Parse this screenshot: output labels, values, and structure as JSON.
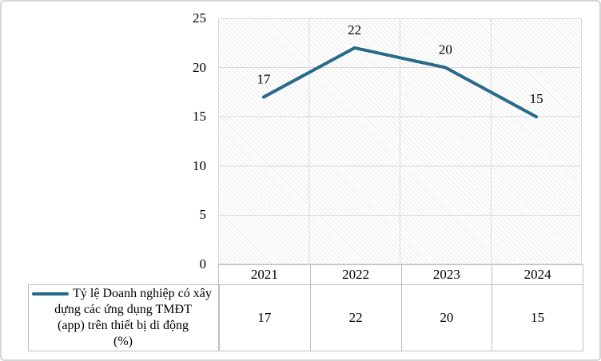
{
  "chart": {
    "y_ticks": [
      "25",
      "20",
      "15",
      "10",
      "5",
      "0"
    ],
    "line_color": "#286a89",
    "grid_color": "#d9d9d9",
    "hatch_color": "#eaeaea",
    "table_border_color": "#bfbfbf"
  },
  "chart_data": {
    "type": "line",
    "title": "",
    "categories": [
      "2021",
      "2022",
      "2023",
      "2024"
    ],
    "series": [
      {
        "name": "Tỷ lệ Doanh nghiệp có xây dựng các ứng dụng TMĐT (app) trên thiết bị di động (%)",
        "values": [
          17,
          22,
          20,
          15
        ]
      }
    ],
    "ylim": [
      0,
      25
    ],
    "y_tick_step": 5,
    "grid": true,
    "data_labels": [
      17,
      22,
      20,
      15
    ],
    "legend_position": "bottom-left-of-data-table",
    "plot_background": "light-diagonal-hatch"
  },
  "table": {
    "legend_label": "Tỷ lệ Doanh nghiệp có xây\ndựng các ứng dụng TMĐT\n(app) trên thiết bị di động\n(%)",
    "years": [
      "2021",
      "2022",
      "2023",
      "2024"
    ],
    "values": [
      "17",
      "22",
      "20",
      "15"
    ]
  }
}
